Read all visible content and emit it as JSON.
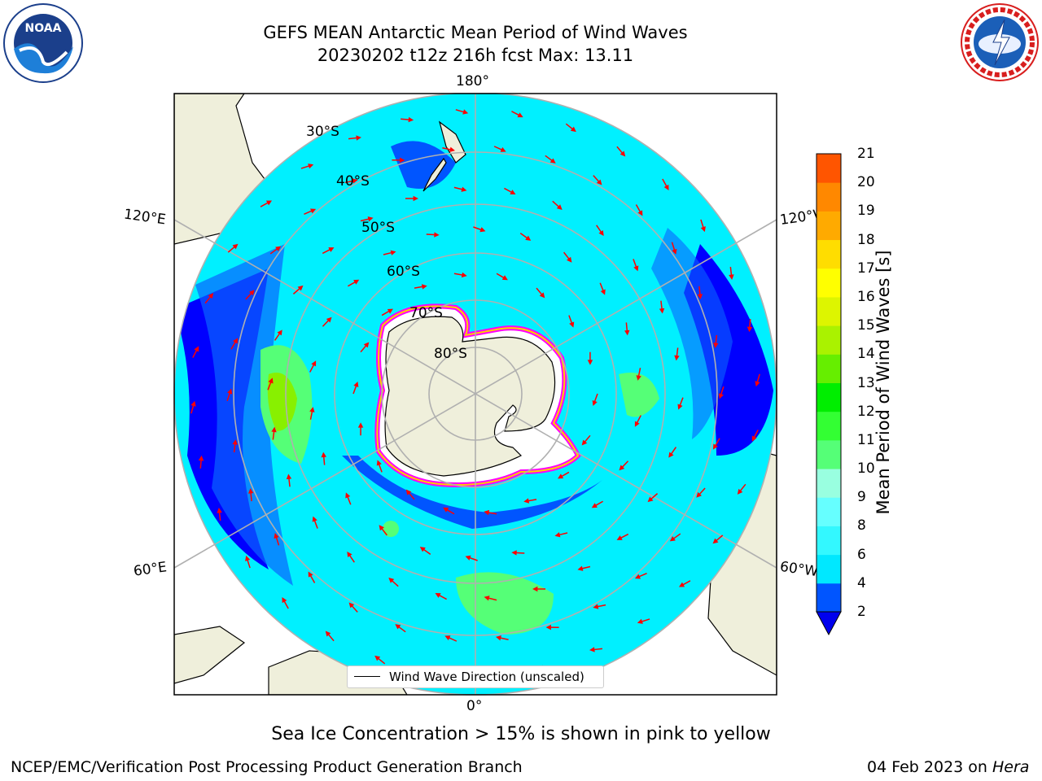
{
  "header": {
    "title_line1": "GEFS MEAN Antarctic Mean Period of Wind Waves",
    "title_line2": "20230202 t12z 216h fcst   Max: 13.11"
  },
  "logos": {
    "left": {
      "name": "noaa-logo",
      "text": "NOAA"
    },
    "right": {
      "name": "nws-logo",
      "text": "NATIONAL WEATHER SERVICE"
    }
  },
  "map": {
    "projection": "south-polar-stereographic",
    "longitude_labels": {
      "top": "180°",
      "bottom": "0°",
      "left_upper": "120°E",
      "left_lower": "60°E",
      "right_upper": "120°W",
      "right_lower": "60°W"
    },
    "latitude_labels": [
      "30°S",
      "40°S",
      "50°S",
      "60°S",
      "70°S",
      "80°S"
    ],
    "colors": {
      "land": "#efefdb",
      "ocean_low": "#0000ff",
      "ocean_mid": "#00f0ff",
      "ice_edge": "#ff00ff",
      "arrow": "#ff0000",
      "grid": "#b0b0b0"
    }
  },
  "legend": {
    "label": "Wind Wave Direction (unscaled)"
  },
  "colorbar": {
    "label": "Mean Period of Wind Waves [s]",
    "ticks": [
      "2",
      "4",
      "6",
      "8",
      "9",
      "10",
      "11",
      "12",
      "13",
      "14",
      "15",
      "16",
      "17",
      "18",
      "19",
      "20",
      "21"
    ],
    "colors": [
      "#0055ff",
      "#00e8ff",
      "#33f8ff",
      "#66ffff",
      "#99ffe0",
      "#55ff77",
      "#33ff33",
      "#00ee00",
      "#66ee00",
      "#aaf200",
      "#ddf500",
      "#ffff00",
      "#ffdd00",
      "#ffaa00",
      "#ff8800",
      "#ff5500",
      "#ff2200",
      "#ff0000"
    ],
    "extend_color": "#0000ee"
  },
  "caption": "Sea Ice Concentration > 15% is shown in pink to yellow",
  "footer": {
    "left": "NCEP/EMC/Verification Post Processing Product Generation Branch",
    "right_date": "04 Feb 2023 on",
    "right_host": "Hera"
  }
}
